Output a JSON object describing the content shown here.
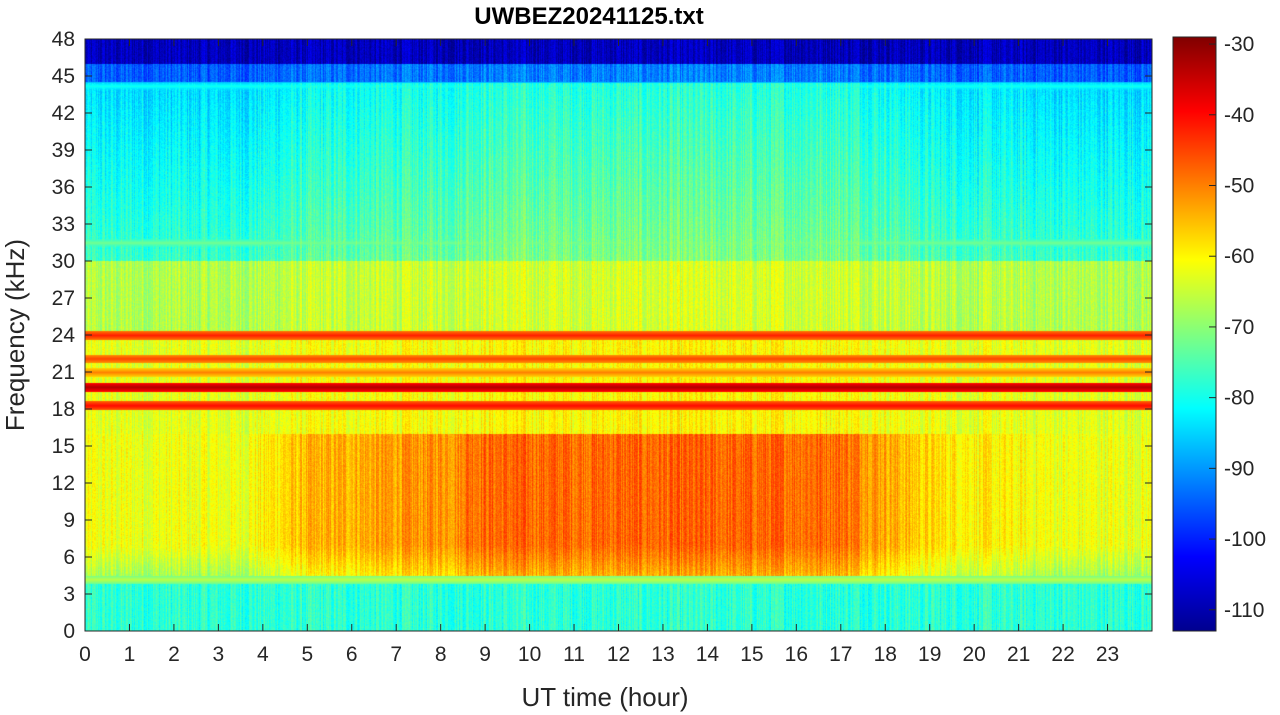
{
  "chart_data": {
    "type": "heatmap",
    "title": "UWBEZ20241125.txt",
    "xlabel": "UT time (hour)",
    "ylabel": "Frequency (kHz)",
    "xlim": [
      0,
      24
    ],
    "ylim": [
      0,
      48
    ],
    "xticks": [
      0,
      1,
      2,
      3,
      4,
      5,
      6,
      7,
      8,
      9,
      10,
      11,
      12,
      13,
      14,
      15,
      16,
      17,
      18,
      19,
      20,
      21,
      22,
      23
    ],
    "yticks": [
      0,
      3,
      6,
      9,
      12,
      15,
      18,
      21,
      24,
      27,
      30,
      33,
      36,
      39,
      42,
      45,
      48
    ],
    "colorbar": {
      "colormap": "jet",
      "range": [
        -113,
        -29
      ],
      "ticks": [
        -110,
        -100,
        -90,
        -80,
        -70,
        -60,
        -50,
        -40,
        -30
      ]
    },
    "approx_levels_db": {
      "band_45_48_khz": -108,
      "band_30_45_khz": -85,
      "band_24_30_khz": -67,
      "band_4_16_khz_night_hours_0_4_and_18_24": -62,
      "band_4_16_khz_hours_9_17": -48,
      "band_0_4_khz": -78
    },
    "persistent_lines_khz": [
      {
        "freq": 19.8,
        "level_db": -33
      },
      {
        "freq": 18.3,
        "level_db": -40
      },
      {
        "freq": 24.0,
        "level_db": -42
      },
      {
        "freq": 22.1,
        "level_db": -45
      },
      {
        "freq": 21.0,
        "level_db": -50
      },
      {
        "freq": 44.2,
        "level_db": -80
      },
      {
        "freq": 31.5,
        "level_db": -72
      },
      {
        "freq": 4.2,
        "level_db": -66
      }
    ]
  }
}
